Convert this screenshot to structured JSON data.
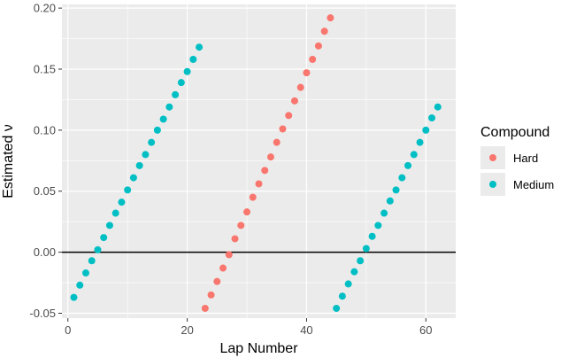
{
  "chart_data": {
    "type": "scatter",
    "xlabel": "Lap Number",
    "ylabel": "Estimated ν",
    "xlim": [
      -1.0,
      65.0
    ],
    "ylim": [
      -0.054,
      0.203
    ],
    "xticks": [
      0,
      20,
      40,
      60
    ],
    "yticks": [
      -0.05,
      0.0,
      0.05,
      0.1,
      0.15,
      0.2
    ],
    "ytick_labels": [
      "-0.05",
      "0.00",
      "0.05",
      "0.10",
      "0.15",
      "0.20"
    ],
    "grid": true,
    "hline": 0,
    "legend": {
      "title": "Compound",
      "placement": "right"
    },
    "series": [
      {
        "name": "Hard",
        "color": "#F8766D",
        "x": [
          23,
          24,
          25,
          26,
          27,
          28,
          29,
          30,
          31,
          32,
          33,
          34,
          35,
          36,
          37,
          38,
          39,
          40,
          41,
          42,
          43,
          44
        ],
        "y": [
          -0.046,
          -0.035,
          -0.024,
          -0.013,
          -0.002,
          0.011,
          0.022,
          0.033,
          0.045,
          0.056,
          0.067,
          0.078,
          0.09,
          0.101,
          0.112,
          0.124,
          0.135,
          0.147,
          0.158,
          0.169,
          0.181,
          0.192
        ]
      },
      {
        "name": "Medium",
        "color": "#00BFC4",
        "x": [
          1,
          2,
          3,
          4,
          5,
          6,
          7,
          8,
          9,
          10,
          11,
          12,
          13,
          14,
          15,
          16,
          17,
          18,
          19,
          20,
          21,
          22,
          45,
          46,
          47,
          48,
          49,
          50,
          51,
          52,
          53,
          54,
          55,
          56,
          57,
          58,
          59,
          60,
          61,
          62
        ],
        "y": [
          -0.037,
          -0.027,
          -0.017,
          -0.007,
          0.002,
          0.012,
          0.022,
          0.032,
          0.041,
          0.051,
          0.061,
          0.071,
          0.08,
          0.09,
          0.1,
          0.109,
          0.119,
          0.129,
          0.139,
          0.148,
          0.158,
          0.168,
          -0.046,
          -0.036,
          -0.026,
          -0.016,
          -0.007,
          0.003,
          0.013,
          0.022,
          0.032,
          0.042,
          0.051,
          0.061,
          0.071,
          0.08,
          0.09,
          0.1,
          0.11,
          0.119
        ]
      }
    ]
  }
}
